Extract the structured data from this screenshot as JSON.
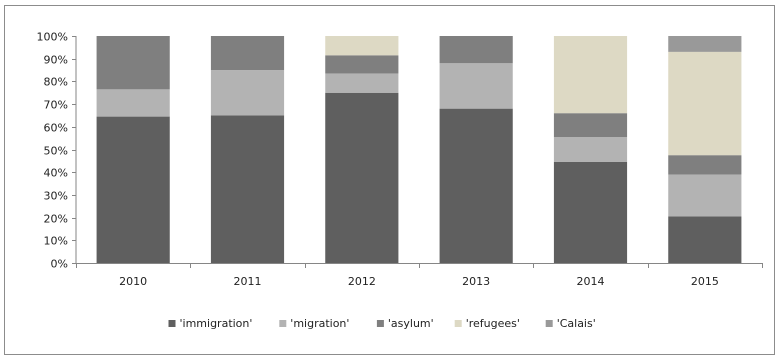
{
  "chart_data": {
    "type": "bar",
    "stacked": true,
    "percent": true,
    "categories": [
      "2010",
      "2011",
      "2012",
      "2013",
      "2014",
      "2015"
    ],
    "y_ticks": [
      "0%",
      "10%",
      "20%",
      "30%",
      "40%",
      "50%",
      "60%",
      "70%",
      "80%",
      "90%",
      "100%"
    ],
    "ylim": [
      0,
      100
    ],
    "grid": false,
    "legend_position": "bottom",
    "series": [
      {
        "name": "'immigration'",
        "color": "#5f5f5f",
        "values": [
          64.5,
          65,
          75,
          68,
          44.5,
          20.5
        ]
      },
      {
        "name": "'migration'",
        "color": "#b3b3b3",
        "values": [
          12,
          20,
          8.5,
          20,
          11,
          18.5
        ]
      },
      {
        "name": "'asylum'",
        "color": "#7f7f7f",
        "values": [
          23.5,
          15,
          8,
          12,
          10.5,
          8.5
        ]
      },
      {
        "name": "'refugees'",
        "color": "#ddd9c4",
        "values": [
          0,
          0,
          8.5,
          0,
          34,
          45.5
        ]
      },
      {
        "name": "'Calais'",
        "color": "#999999",
        "values": [
          0,
          0,
          0,
          0,
          0,
          7
        ]
      }
    ]
  }
}
